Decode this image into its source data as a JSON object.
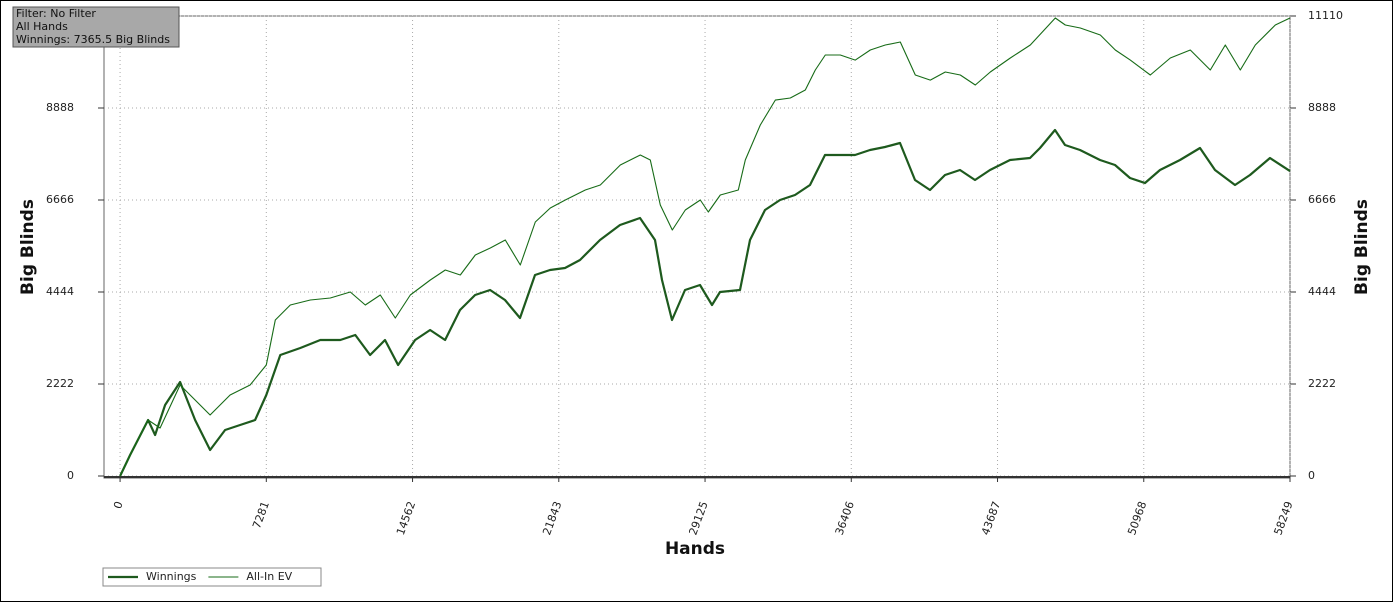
{
  "chart_data": {
    "type": "line",
    "info": [
      "Filter: No Filter",
      "All Hands",
      "Winnings: 7365.5 Big Blinds"
    ],
    "xlabel": "Hands",
    "ylabel": "Big Blinds",
    "y2label": "Big Blinds",
    "xlim": [
      -800,
      58249
    ],
    "ylim": [
      0,
      11110
    ],
    "y2lim": [
      0,
      11110
    ],
    "xticks": [
      0,
      7281,
      14562,
      21843,
      29125,
      36406,
      43687,
      50968,
      58249
    ],
    "yticks": [
      0,
      2222,
      4444,
      6666,
      8888,
      11110
    ],
    "y2ticks": [
      0,
      2222,
      4444,
      6666,
      8888,
      11110
    ],
    "grid": true,
    "legend": "bottom-left",
    "series": [
      {
        "name": "Winnings",
        "color": "#1e5a1e",
        "width": 2.2,
        "x": [
          0,
          498,
          1394,
          1742,
          2240,
          2987,
          3734,
          4481,
          5227,
          5974,
          6721,
          7281,
          7978,
          8974,
          9970,
          10965,
          11712,
          12447,
          13193,
          13841,
          14687,
          15434,
          16181,
          16927,
          17674,
          18421,
          19167,
          19914,
          20661,
          21408,
          22154,
          22901,
          23897,
          24892,
          25888,
          26635,
          26983,
          27481,
          28128,
          28875,
          29473,
          29872,
          30867,
          31365,
          32112,
          32859,
          33606,
          34352,
          35099,
          35846,
          36593,
          37340,
          38086,
          38833,
          39580,
          40327,
          41073,
          41820,
          42567,
          43314,
          44310,
          45305,
          45803,
          46550,
          47048,
          47795,
          48790,
          49537,
          50284,
          51031,
          51778,
          52773,
          53769,
          54516,
          55511,
          56258,
          57254,
          58249
        ],
        "values": [
          0,
          507,
          1352,
          990,
          1715,
          2270,
          1352,
          628,
          1111,
          1232,
          1352,
          1956,
          2922,
          3091,
          3284,
          3284,
          3405,
          2922,
          3284,
          2681,
          3284,
          3526,
          3284,
          4009,
          4371,
          4492,
          4250,
          3816,
          4854,
          4975,
          5023,
          5216,
          5699,
          6062,
          6231,
          5699,
          4733,
          3767,
          4492,
          4612,
          4130,
          4444,
          4492,
          5699,
          6424,
          6665,
          6786,
          7028,
          7752,
          7752,
          7752,
          7873,
          7945,
          8042,
          7148,
          6907,
          7269,
          7390,
          7148,
          7390,
          7631,
          7680,
          7921,
          8356,
          7994,
          7873,
          7631,
          7511,
          7197,
          7076,
          7390,
          7631,
          7921,
          7390,
          7028,
          7269,
          7680,
          7365
        ]
      },
      {
        "name": "All-In EV",
        "color": "#176b17",
        "width": 1.1,
        "x": [
          0,
          747,
          1394,
          1991,
          2987,
          3734,
          4481,
          5476,
          6472,
          7281,
          7729,
          8476,
          9472,
          10467,
          11463,
          12210,
          12957,
          13703,
          14450,
          15446,
          16193,
          16940,
          17686,
          18433,
          19180,
          19927,
          20673,
          21420,
          22167,
          23163,
          23909,
          24905,
          25901,
          26398,
          26896,
          27494,
          28141,
          28888,
          29286,
          29884,
          30779,
          31128,
          31875,
          32621,
          33368,
          34115,
          34613,
          35111,
          35858,
          36604,
          37351,
          38098,
          38845,
          39592,
          40338,
          41085,
          41832,
          42579,
          43325,
          44321,
          45317,
          46562,
          47060,
          47807,
          48803,
          49550,
          50296,
          51292,
          52288,
          53284,
          54279,
          55026,
          55773,
          56520,
          57515,
          58249
        ],
        "values": [
          0,
          749,
          1352,
          1159,
          2198,
          1835,
          1473,
          1956,
          2198,
          2681,
          3767,
          4130,
          4250,
          4299,
          4444,
          4130,
          4371,
          3816,
          4371,
          4733,
          4975,
          4854,
          5337,
          5506,
          5699,
          5096,
          6134,
          6472,
          6665,
          6907,
          7028,
          7511,
          7752,
          7631,
          6545,
          5941,
          6424,
          6665,
          6376,
          6786,
          6907,
          7631,
          8477,
          9080,
          9129,
          9322,
          9805,
          10167,
          10167,
          10046,
          10288,
          10409,
          10481,
          9684,
          9563,
          9757,
          9684,
          9443,
          9757,
          10095,
          10409,
          11061,
          10892,
          10819,
          10650,
          10288,
          10046,
          9684,
          10095,
          10288,
          9805,
          10409,
          9805,
          10409,
          10892,
          11061
        ]
      }
    ]
  }
}
